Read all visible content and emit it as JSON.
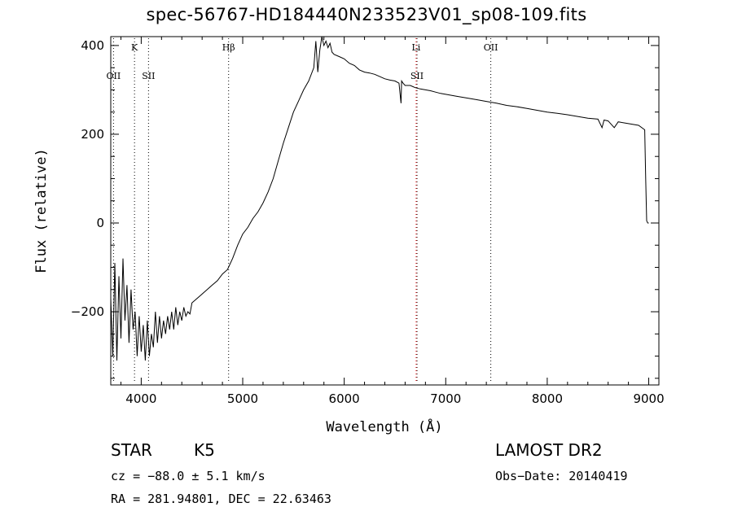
{
  "chart_data": {
    "type": "line",
    "title": "spec-56767-HD184440N233523V01_sp08-109.fits",
    "xlabel": "Wavelength (Å)",
    "ylabel": "Flux (relative)",
    "xlim": [
      3700,
      9100
    ],
    "ylim": [
      -365,
      420
    ],
    "x_ticks": [
      4000,
      5000,
      6000,
      7000,
      8000,
      9000
    ],
    "y_ticks": [
      -200,
      0,
      200,
      400
    ],
    "grid": false,
    "line_markers": [
      {
        "label": "OII",
        "x": 3727,
        "color": "#000000",
        "label_row": 2
      },
      {
        "label": "K",
        "x": 3934,
        "color": "#000000",
        "label_row": 1
      },
      {
        "label": "SII",
        "x": 4072,
        "color": "#000000",
        "label_row": 2
      },
      {
        "label": "Hβ",
        "x": 4861,
        "color": "#000000",
        "label_row": 1
      },
      {
        "label": "Li",
        "x": 6708,
        "color": "#ff0000",
        "label_row": 1
      },
      {
        "label": "SII",
        "x": 6717,
        "color": "#000000",
        "label_row": 2
      },
      {
        "label": "OII",
        "x": 7444,
        "color": "#000000",
        "label_row": 1
      }
    ],
    "series": [
      {
        "x": [
          3700,
          3720,
          3740,
          3760,
          3780,
          3800,
          3820,
          3840,
          3860,
          3880,
          3900,
          3920,
          3940,
          3960,
          3980,
          4000,
          4020,
          4040,
          4060,
          4080,
          4100,
          4120,
          4140,
          4160,
          4180,
          4200,
          4220,
          4240,
          4260,
          4280,
          4300,
          4320,
          4340,
          4360,
          4380,
          4400,
          4420,
          4440,
          4460,
          4480,
          4500,
          4550,
          4600,
          4650,
          4700,
          4750,
          4800,
          4850,
          4900,
          4950,
          5000,
          5050,
          5100,
          5150,
          5200,
          5250,
          5300,
          5350,
          5400,
          5450,
          5500,
          5550,
          5600,
          5650,
          5700,
          5720,
          5740,
          5760,
          5780,
          5800,
          5820,
          5840,
          5860,
          5880,
          5900,
          5950,
          6000,
          6050,
          6100,
          6150,
          6200,
          6250,
          6300,
          6350,
          6400,
          6450,
          6500,
          6540,
          6560,
          6565,
          6580,
          6600,
          6650,
          6700,
          6750,
          6800,
          6850,
          6900,
          6950,
          7000,
          7100,
          7200,
          7300,
          7400,
          7500,
          7600,
          7700,
          7800,
          7900,
          8000,
          8100,
          8200,
          8300,
          8400,
          8500,
          8540,
          8560,
          8600,
          8660,
          8700,
          8800,
          8900,
          8960,
          8970,
          8980,
          8990,
          9000
        ],
        "values": [
          -170,
          -300,
          -90,
          -310,
          -120,
          -260,
          -80,
          -220,
          -140,
          -270,
          -150,
          -240,
          -200,
          -300,
          -210,
          -290,
          -230,
          -310,
          -220,
          -300,
          -250,
          -280,
          -200,
          -270,
          -210,
          -260,
          -220,
          -250,
          -210,
          -240,
          -200,
          -240,
          -190,
          -230,
          -200,
          -220,
          -190,
          -210,
          -200,
          -205,
          -180,
          -170,
          -160,
          -150,
          -140,
          -130,
          -115,
          -105,
          -80,
          -50,
          -25,
          -10,
          10,
          25,
          45,
          70,
          100,
          140,
          180,
          215,
          250,
          275,
          300,
          320,
          350,
          410,
          340,
          390,
          420,
          400,
          410,
          395,
          405,
          385,
          380,
          375,
          370,
          360,
          355,
          345,
          340,
          338,
          335,
          330,
          325,
          322,
          320,
          315,
          270,
          320,
          315,
          310,
          310,
          305,
          302,
          300,
          298,
          295,
          292,
          290,
          286,
          282,
          278,
          274,
          270,
          265,
          262,
          258,
          254,
          250,
          247,
          244,
          240,
          236,
          234,
          215,
          232,
          230,
          215,
          228,
          224,
          220,
          210,
          100,
          5,
          0,
          0
        ]
      }
    ]
  },
  "info": {
    "star_label": "STAR",
    "class_label": "K5",
    "cz": "cz = −88.0 ± 5.1 km/s",
    "radec": "RA = 281.94801, DEC =  22.63463",
    "survey": "LAMOST DR2",
    "obs_date": "Obs−Date: 20140419"
  }
}
